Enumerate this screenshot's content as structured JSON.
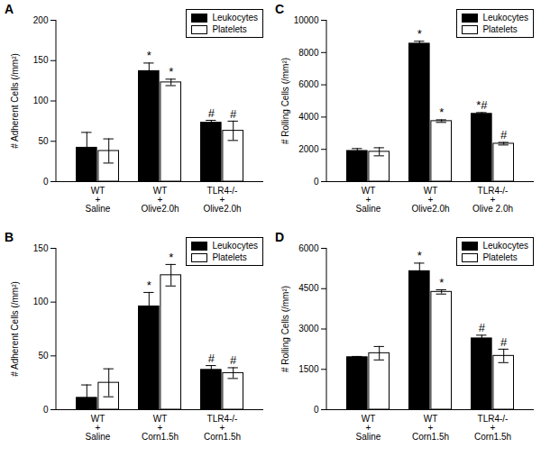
{
  "chart_data": [
    {
      "type": "bar",
      "title": "A",
      "ylabel": "# Adherent Cells (/mm²)",
      "categories": [
        "WT\n+\nSaline",
        "WT\n+\nOlive2.0h",
        "TLR4-/-\n+\nOlive2.0h"
      ],
      "series": [
        {
          "name": "Leukocytes",
          "color": "#000000",
          "values": [
            42,
            137,
            73
          ],
          "errors": [
            19,
            10,
            3
          ],
          "annotations": [
            null,
            "*",
            "#"
          ]
        },
        {
          "name": "Platelets",
          "color": "#ffffff",
          "values": [
            38,
            123,
            63
          ],
          "errors": [
            15,
            4,
            12
          ],
          "annotations": [
            null,
            "*",
            "#"
          ]
        }
      ],
      "ylim": [
        0,
        200
      ],
      "yticks": [
        0,
        50,
        100,
        150,
        200
      ],
      "legend": "top-right"
    },
    {
      "type": "bar",
      "title": "B",
      "ylabel": "# Adherent Cells (/mm²)",
      "categories": [
        "WT\n+\nSaline",
        "WT\n+\nCorn1.5h",
        "TLR4-/-\n+\nCorn1.5h"
      ],
      "series": [
        {
          "name": "Leukocytes",
          "color": "#000000",
          "values": [
            11,
            96,
            37
          ],
          "errors": [
            12,
            13,
            4
          ],
          "annotations": [
            null,
            "*",
            "#"
          ]
        },
        {
          "name": "Platelets",
          "color": "#ffffff",
          "values": [
            25,
            125,
            34
          ],
          "errors": [
            13,
            10,
            5
          ],
          "annotations": [
            null,
            "*",
            "#"
          ]
        }
      ],
      "ylim": [
        0,
        150
      ],
      "yticks": [
        0,
        50,
        100,
        150
      ],
      "legend": "top-right"
    },
    {
      "type": "bar",
      "title": "C",
      "ylabel": "# Rolling Cells (/mm²)",
      "categories": [
        "WT\n+\nSaline",
        "WT\n+\nOlive2.0h",
        "TLR4-/-\n+\nOlive 2.0h"
      ],
      "series": [
        {
          "name": "Leukocytes",
          "color": "#000000",
          "values": [
            1900,
            8550,
            4200
          ],
          "errors": [
            150,
            150,
            80
          ],
          "annotations": [
            null,
            "*",
            "*#"
          ]
        },
        {
          "name": "Platelets",
          "color": "#ffffff",
          "values": [
            1850,
            3750,
            2350
          ],
          "errors": [
            250,
            80,
            80
          ],
          "annotations": [
            null,
            "*",
            "#"
          ]
        }
      ],
      "ylim": [
        0,
        10000
      ],
      "yticks": [
        0,
        2000,
        4000,
        6000,
        8000,
        10000
      ],
      "legend": "top-right"
    },
    {
      "type": "bar",
      "title": "D",
      "ylabel": "# Rolling Cells (/mm²)",
      "categories": [
        "WT\n+\nSaline",
        "WT\n+\nCorn1.5h",
        "TLR4-/-\n+\nCorn1.5h"
      ],
      "series": [
        {
          "name": "Leukocytes",
          "color": "#000000",
          "values": [
            1950,
            5150,
            2650
          ],
          "errors": [
            30,
            300,
            120
          ],
          "annotations": [
            null,
            "*",
            "#"
          ]
        },
        {
          "name": "Platelets",
          "color": "#ffffff",
          "values": [
            2100,
            4380,
            2000
          ],
          "errors": [
            250,
            80,
            250
          ],
          "annotations": [
            null,
            "*",
            "#"
          ]
        }
      ],
      "ylim": [
        0,
        6000
      ],
      "yticks": [
        0,
        1500,
        3000,
        4500,
        6000
      ],
      "legend": "top-right"
    }
  ]
}
